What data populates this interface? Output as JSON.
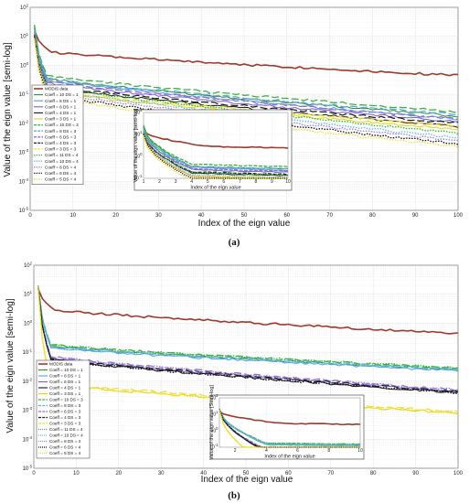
{
  "chart_data": [
    {
      "panel": "(a)",
      "type": "line",
      "xlabel": "Index of the eign value",
      "ylabel": "Value of the eign value [semi-log]",
      "xlim": [
        0,
        100
      ],
      "ylim_log10": [
        -5,
        2
      ],
      "yscale": "log",
      "grid": true,
      "legend_placement": "lower-left",
      "x_ticks": [
        0,
        10,
        20,
        30,
        40,
        50,
        60,
        70,
        80,
        90,
        100
      ],
      "y_ticks": [
        "10^-5",
        "10^-4",
        "10^-3",
        "10^-2",
        "10^-1",
        "10^0",
        "10^1",
        "10^2"
      ],
      "series": [
        {
          "name": "MODIS data",
          "color": "#a0392b",
          "dash": "solid",
          "width": 1.6,
          "start": 1.2,
          "plateau": 0.45,
          "end": -0.35,
          "knee": 5
        },
        {
          "name": "Coeff = 10 DS = 1",
          "color": "#2e8b2e",
          "dash": "solid",
          "width": 1.0,
          "start": 1.4,
          "plateau": -0.45,
          "end": -1.75,
          "knee": 4
        },
        {
          "name": "Coeff = 8 DS = 1",
          "color": "#4aa3df",
          "dash": "solid",
          "width": 1.0,
          "start": 1.3,
          "plateau": -0.5,
          "end": -1.85,
          "knee": 4
        },
        {
          "name": "Coeff = 6 DS = 1",
          "color": "#7b5bc9",
          "dash": "solid",
          "width": 1.0,
          "start": 1.2,
          "plateau": -0.6,
          "end": -1.95,
          "knee": 4
        },
        {
          "name": "Coeff = 4 DS = 1",
          "color": "#1a1a1a",
          "dash": "solid",
          "width": 1.0,
          "start": 1.1,
          "plateau": -0.75,
          "end": -2.1,
          "knee": 4
        },
        {
          "name": "Coeff = 3 DS = 1",
          "color": "#e6d21a",
          "dash": "solid",
          "width": 1.0,
          "start": 1.0,
          "plateau": -0.9,
          "end": -2.2,
          "knee": 4
        },
        {
          "name": "Coeff = 10 DS = 3",
          "color": "#3cb043",
          "dash": "8 3",
          "width": 1.3,
          "start": 1.35,
          "plateau": -0.35,
          "end": -1.6,
          "knee": 4
        },
        {
          "name": "Coeff = 8 DS = 3",
          "color": "#5dade2",
          "dash": "8 3",
          "width": 1.3,
          "start": 1.25,
          "plateau": -0.45,
          "end": -1.7,
          "knee": 4
        },
        {
          "name": "Coeff = 6 DS = 3",
          "color": "#8e6fd6",
          "dash": "8 3",
          "width": 1.3,
          "start": 1.15,
          "plateau": -0.55,
          "end": -1.85,
          "knee": 4
        },
        {
          "name": "Coeff = 4 DS = 3",
          "color": "#222222",
          "dash": "8 3",
          "width": 1.3,
          "start": 1.05,
          "plateau": -0.7,
          "end": -2.0,
          "knee": 4
        },
        {
          "name": "Coeff = 3 DS = 3",
          "color": "#f0e030",
          "dash": "8 3",
          "width": 1.3,
          "start": 0.95,
          "plateau": -0.85,
          "end": -2.1,
          "knee": 4
        },
        {
          "name": "Coeff = 11 DS = 4",
          "color": "#2bbf2b",
          "dash": "1.5 1.5",
          "width": 1.3,
          "start": 1.3,
          "plateau": -0.7,
          "end": -2.35,
          "knee": 4
        },
        {
          "name": "Coeff = 10 DS = 4",
          "color": "#6fb6e8",
          "dash": "1.5 1.5",
          "width": 1.3,
          "start": 1.2,
          "plateau": -0.8,
          "end": -2.5,
          "knee": 4
        },
        {
          "name": "Coeff = 8 DS = 4",
          "color": "#9b7fe0",
          "dash": "1.5 1.5",
          "width": 1.3,
          "start": 1.1,
          "plateau": -0.9,
          "end": -2.6,
          "knee": 4
        },
        {
          "name": "Coeff = 6 DS = 4",
          "color": "#111111",
          "dash": "1.5 1.5",
          "width": 1.3,
          "start": 1.0,
          "plateau": -1.0,
          "end": -2.7,
          "knee": 4
        },
        {
          "name": "Coeff = 5 DS = 4",
          "color": "#ece02a",
          "dash": "1.5 1.5",
          "width": 1.3,
          "start": 0.9,
          "plateau": -1.1,
          "end": -2.8,
          "knee": 4
        }
      ],
      "inset": {
        "xlabel": "Index of the eign value",
        "ylabel": "Value of the eign value [semi-log]",
        "xlim": [
          1,
          10
        ],
        "x_ticks": [
          1,
          2,
          3,
          4,
          5,
          6,
          7,
          8,
          9,
          10
        ],
        "y_ticks": [
          "10^-1",
          "10^0",
          "10^1",
          "10^2"
        ]
      }
    },
    {
      "panel": "(b)",
      "type": "line",
      "xlabel": "Index of the eign value",
      "ylabel": "Value of the eign value [semi-log]",
      "xlim": [
        0,
        100
      ],
      "ylim_log10": [
        -5,
        2
      ],
      "yscale": "log",
      "grid": true,
      "legend_placement": "lower-left",
      "x_ticks": [
        0,
        10,
        20,
        30,
        40,
        50,
        60,
        70,
        80,
        90,
        100
      ],
      "y_ticks": [
        "10^-5",
        "10^-4",
        "10^-3",
        "10^-2",
        "10^-1",
        "10^0",
        "10^1",
        "10^2"
      ],
      "series": [
        {
          "name": "MODIS data",
          "color": "#a0392b",
          "dash": "solid",
          "width": 1.6,
          "start": 1.2,
          "plateau": 0.45,
          "end": -0.35,
          "knee": 5
        },
        {
          "name": "Coeff = 10 DS = 1",
          "color": "#2e8b2e",
          "dash": "solid",
          "width": 1.0,
          "start": 1.3,
          "plateau": -0.8,
          "end": -1.6,
          "knee": 4
        },
        {
          "name": "Coeff = 8 DS = 1",
          "color": "#4aa3df",
          "dash": "solid",
          "width": 1.0,
          "start": 1.3,
          "plateau": -0.85,
          "end": -1.65,
          "knee": 4
        },
        {
          "name": "Coeff = 6 DS = 1",
          "color": "#7b5bc9",
          "dash": "solid",
          "width": 1.0,
          "start": 1.3,
          "plateau": -1.2,
          "end": -2.35,
          "knee": 4
        },
        {
          "name": "Coeff = 4 DS = 1",
          "color": "#1a1a1a",
          "dash": "solid",
          "width": 1.0,
          "start": 1.3,
          "plateau": -1.25,
          "end": -2.4,
          "knee": 4
        },
        {
          "name": "Coeff = 3 DS = 1",
          "color": "#e6d21a",
          "dash": "solid",
          "width": 1.0,
          "start": 1.3,
          "plateau": -2.1,
          "end": -3.1,
          "knee": 4
        },
        {
          "name": "Coeff = 10 DS = 3",
          "color": "#3cb043",
          "dash": "8 3",
          "width": 1.3,
          "start": 1.3,
          "plateau": -0.75,
          "end": -1.55,
          "knee": 4
        },
        {
          "name": "Coeff = 8 DS = 3",
          "color": "#5dade2",
          "dash": "8 3",
          "width": 1.3,
          "start": 1.3,
          "plateau": -0.8,
          "end": -1.6,
          "knee": 4
        },
        {
          "name": "Coeff = 6 DS = 3",
          "color": "#8e6fd6",
          "dash": "8 3",
          "width": 1.3,
          "start": 1.3,
          "plateau": -1.15,
          "end": -2.3,
          "knee": 4
        },
        {
          "name": "Coeff = 4 DS = 3",
          "color": "#222222",
          "dash": "8 3",
          "width": 1.3,
          "start": 1.3,
          "plateau": -1.2,
          "end": -2.35,
          "knee": 4
        },
        {
          "name": "Coeff = 3 DS = 3",
          "color": "#f0e030",
          "dash": "8 3",
          "width": 1.3,
          "start": 1.3,
          "plateau": -2.05,
          "end": -3.05,
          "knee": 4
        },
        {
          "name": "Coeff = 11 DS = 4",
          "color": "#2bbf2b",
          "dash": "1.5 1.5",
          "width": 1.3,
          "start": 1.3,
          "plateau": -0.75,
          "end": -1.55,
          "knee": 4
        },
        {
          "name": "Coeff = 10 DS = 4",
          "color": "#6fb6e8",
          "dash": "1.5 1.5",
          "width": 1.3,
          "start": 1.3,
          "plateau": -0.8,
          "end": -1.6,
          "knee": 4
        },
        {
          "name": "Coeff = 8 DS = 4",
          "color": "#9b7fe0",
          "dash": "1.5 1.5",
          "width": 1.3,
          "start": 1.3,
          "plateau": -1.15,
          "end": -2.3,
          "knee": 4
        },
        {
          "name": "Coeff = 6 DS = 4",
          "color": "#111111",
          "dash": "1.5 1.5",
          "width": 1.3,
          "start": 1.3,
          "plateau": -1.25,
          "end": -2.4,
          "knee": 4
        },
        {
          "name": "Coeff = 5 DS = 4",
          "color": "#ece02a",
          "dash": "1.5 1.5",
          "width": 1.3,
          "start": 1.3,
          "plateau": -2.1,
          "end": -3.1,
          "knee": 4
        }
      ],
      "inset": {
        "xlabel": "Index of the eign value",
        "ylabel": "Value of the eign value [Semi-log]",
        "xlim": [
          1,
          10
        ],
        "x_ticks": [
          2,
          4,
          6,
          8,
          10
        ],
        "y_ticks": [
          "10^-1",
          "10^0",
          "10^1",
          "10^2"
        ]
      }
    }
  ]
}
